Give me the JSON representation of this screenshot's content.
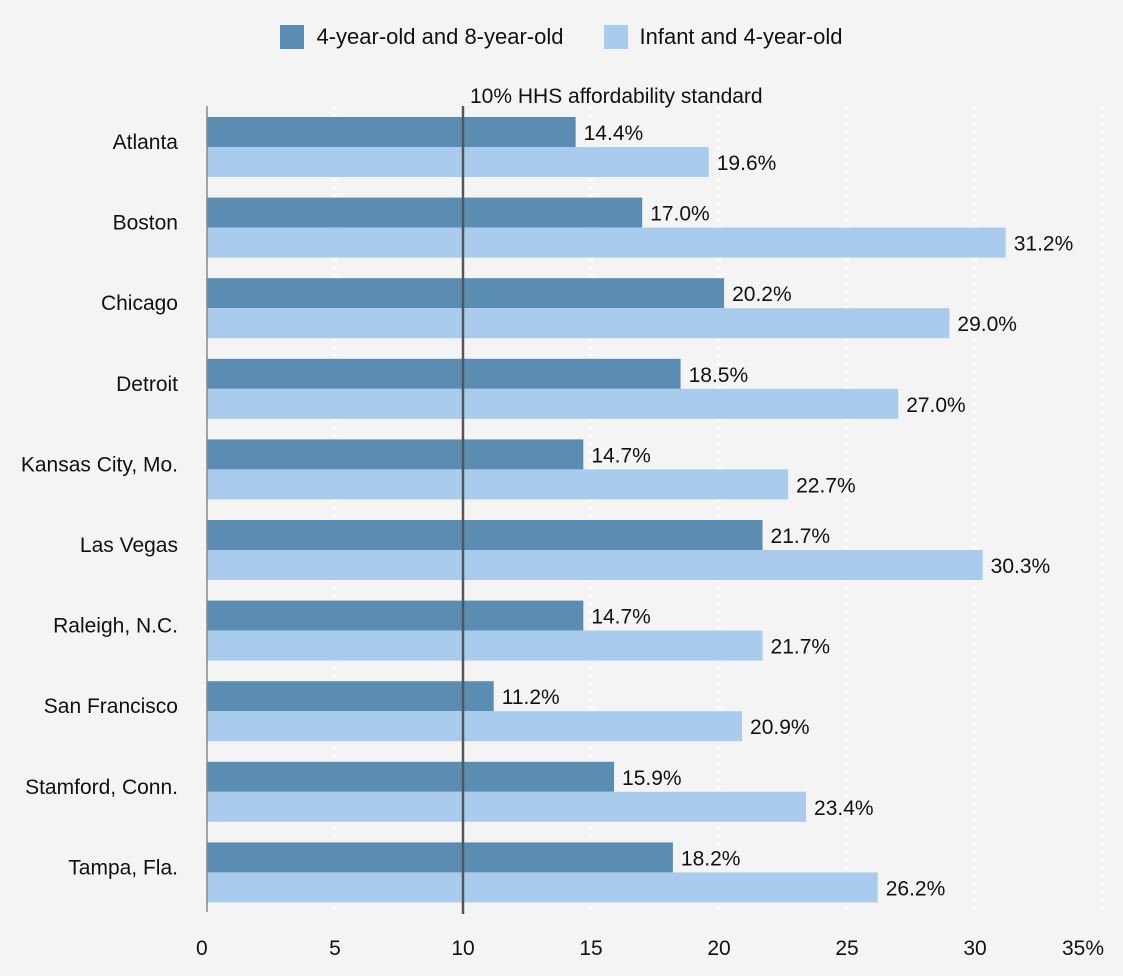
{
  "chart_data": {
    "type": "bar",
    "orientation": "horizontal",
    "categories": [
      "Atlanta",
      "Boston",
      "Chicago",
      "Detroit",
      "Kansas City, Mo.",
      "Las Vegas",
      "Raleigh, N.C.",
      "San Francisco",
      "Stamford, Conn.",
      "Tampa, Fla."
    ],
    "series": [
      {
        "name": "4-year-old and 8-year-old",
        "color": "#5b8db3",
        "values": [
          14.4,
          17.0,
          20.2,
          18.5,
          14.7,
          21.7,
          14.7,
          11.2,
          15.9,
          18.2
        ],
        "labels": [
          "14.4%",
          "17.0%",
          "20.2%",
          "18.5%",
          "14.7%",
          "21.7%",
          "14.7%",
          "11.2%",
          "15.9%",
          "18.2%"
        ]
      },
      {
        "name": "Infant and 4-year-old",
        "color": "#a9ccee",
        "values": [
          19.6,
          31.2,
          29.0,
          27.0,
          22.7,
          30.3,
          21.7,
          20.9,
          23.4,
          26.2
        ],
        "labels": [
          "19.6%",
          "31.2%",
          "29.0%",
          "27.0%",
          "22.7%",
          "30.3%",
          "21.7%",
          "20.9%",
          "23.4%",
          "26.2%"
        ]
      }
    ],
    "xlim": [
      0,
      35
    ],
    "x_ticks": [
      0,
      5,
      10,
      15,
      20,
      25,
      30,
      35
    ],
    "x_tick_labels": [
      "0",
      "5",
      "10",
      "15",
      "20",
      "25",
      "30",
      "35%"
    ],
    "reference_line": {
      "value": 10,
      "label": "10% HHS affordability standard",
      "color": "#555555"
    },
    "grid": true,
    "grid_style": "dotted-white",
    "legend_position": "top-center",
    "title": "",
    "xlabel": "",
    "ylabel": ""
  }
}
